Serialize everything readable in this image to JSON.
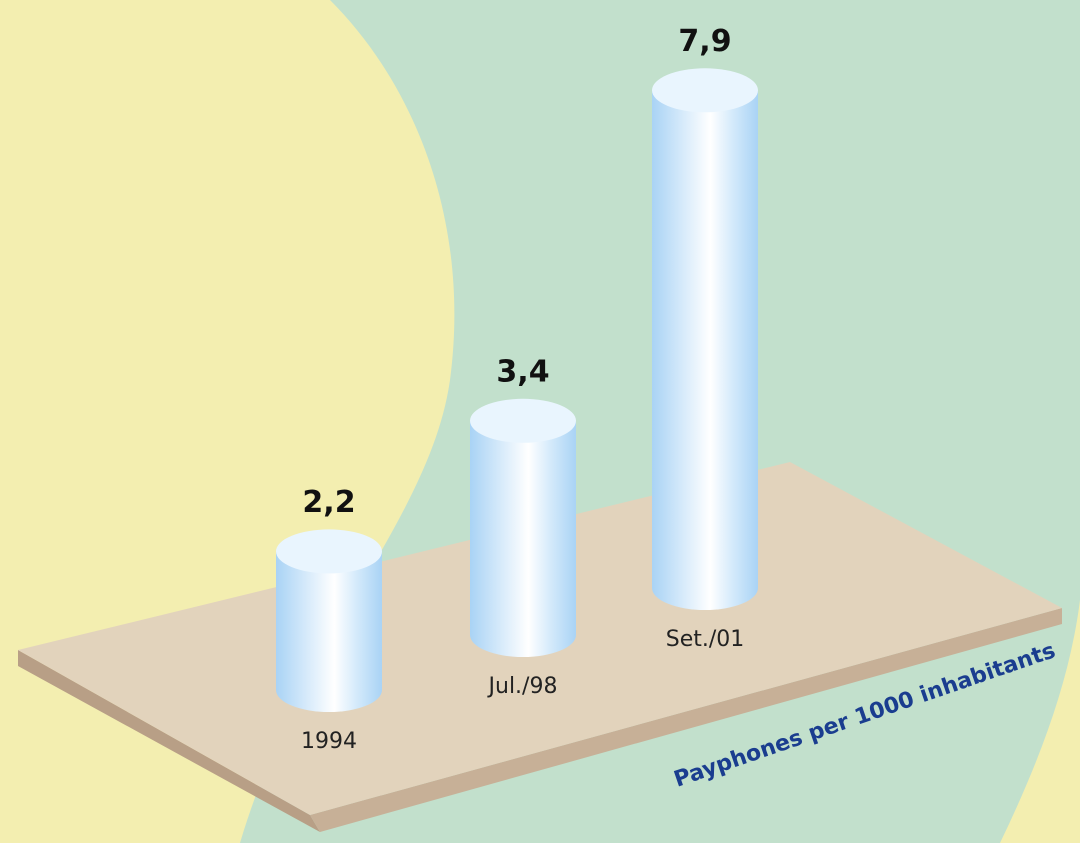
{
  "chart_data": {
    "type": "bar",
    "categories": [
      "1994",
      "Jul./98",
      "Set./01"
    ],
    "values": [
      2.2,
      3.4,
      7.9
    ],
    "value_labels": [
      "2,2",
      "3,4",
      "7,9"
    ],
    "color": "#a9d3f5",
    "y_axis_label": "Payphones per 1000 inhabitants"
  }
}
